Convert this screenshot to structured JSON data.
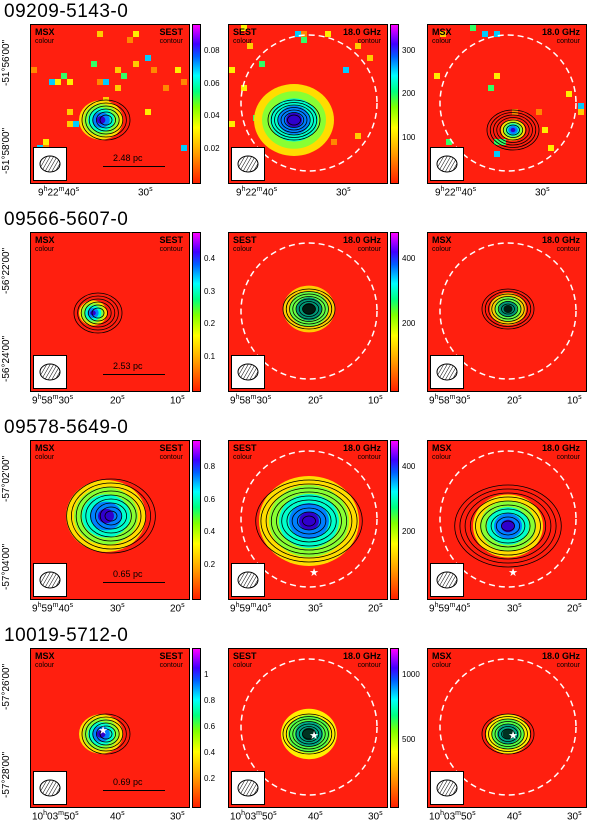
{
  "rows": [
    {
      "title": "09209-5143-0",
      "ra_ticks": [
        "9h22m40s",
        "30s"
      ],
      "dec_ticks": [
        "-51°56'00\"",
        "-51°58'00\""
      ],
      "scale": "2.48 pc",
      "cbar_left": [
        "0.08",
        "0.06",
        "0.04",
        "0.02"
      ],
      "cbar_mid": [
        "300",
        "200",
        "100"
      ]
    },
    {
      "title": "09566-5607-0",
      "ra_ticks": [
        "9h58m30s",
        "20s",
        "10s"
      ],
      "dec_ticks": [
        "-56°22'00\"",
        "-56°24'00\""
      ],
      "scale": "2.53 pc",
      "cbar_left": [
        "0.4",
        "0.3",
        "0.2",
        "0.1"
      ],
      "cbar_mid": [
        "400",
        "200"
      ]
    },
    {
      "title": "09578-5649-0",
      "ra_ticks": [
        "9h59m40s",
        "30s",
        "20s"
      ],
      "dec_ticks": [
        "-57°02'00\"",
        "-57°04'00\""
      ],
      "scale": "0.65 pc",
      "cbar_left": [
        "0.8",
        "0.6",
        "0.4",
        "0.2"
      ],
      "cbar_mid": [
        "400",
        "200"
      ]
    },
    {
      "title": "10019-5712-0",
      "ra_ticks": [
        "10h03m50s",
        "40s",
        "30s"
      ],
      "dec_ticks": [
        "-57°26'00\"",
        "-57°28'00\""
      ],
      "scale": "0.69 pc",
      "cbar_left": [
        "1",
        "0.8",
        "0.6",
        "0.4",
        "0.2"
      ],
      "cbar_mid": [
        "1000",
        "500"
      ]
    }
  ],
  "labels": {
    "msx": "MSX",
    "colour": "colour",
    "sest": "SEST",
    "contour": "contour",
    "freq": "18.0 GHz"
  }
}
